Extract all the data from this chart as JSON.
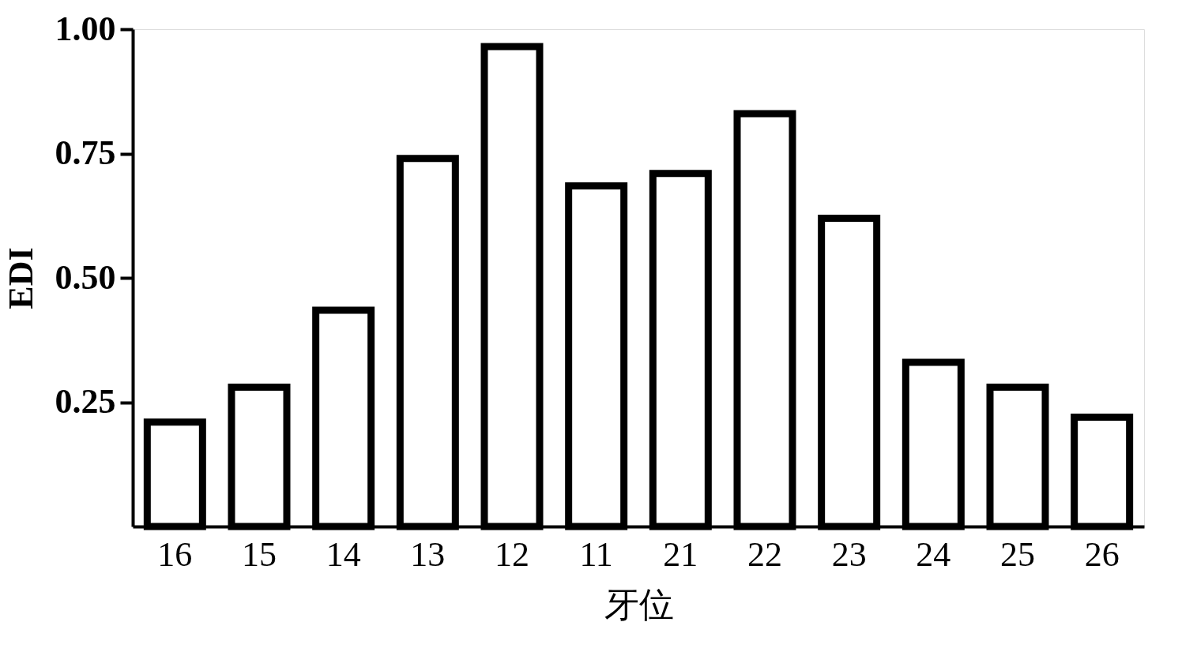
{
  "chart_data": {
    "type": "bar",
    "xlabel": "牙位",
    "ylabel": "EDI",
    "categories": [
      "16",
      "15",
      "14",
      "13",
      "12",
      "11",
      "21",
      "22",
      "23",
      "24",
      "25",
      "26"
    ],
    "values": [
      0.21,
      0.28,
      0.435,
      0.74,
      0.965,
      0.685,
      0.71,
      0.83,
      0.62,
      0.33,
      0.28,
      0.22
    ],
    "color": "#ffffff",
    "ylim": [
      0,
      1
    ],
    "yticks": [
      0.25,
      {
        "value": 0.5,
        "label": "0.50"
      },
      0.75,
      {
        "value": 1,
        "label": "1.00"
      }
    ],
    "grid": false
  }
}
